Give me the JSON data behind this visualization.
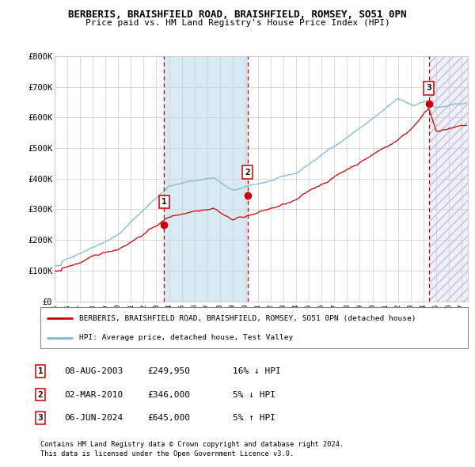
{
  "title_line1": "BERBERIS, BRAISHFIELD ROAD, BRAISHFIELD, ROMSEY, SO51 0PN",
  "title_line2": "Price paid vs. HM Land Registry's House Price Index (HPI)",
  "ylim": [
    0,
    800000
  ],
  "xlim_start": 1995.0,
  "xlim_end": 2027.5,
  "yticks": [
    0,
    100000,
    200000,
    300000,
    400000,
    500000,
    600000,
    700000,
    800000
  ],
  "ytick_labels": [
    "£0",
    "£100K",
    "£200K",
    "£300K",
    "£400K",
    "£500K",
    "£600K",
    "£700K",
    "£800K"
  ],
  "xtick_years": [
    1995,
    1996,
    1997,
    1998,
    1999,
    2000,
    2001,
    2002,
    2003,
    2004,
    2005,
    2006,
    2007,
    2008,
    2009,
    2010,
    2011,
    2012,
    2013,
    2014,
    2015,
    2016,
    2017,
    2018,
    2019,
    2020,
    2021,
    2022,
    2023,
    2024,
    2025,
    2026,
    2027
  ],
  "hpi_color": "#7bb8d8",
  "price_color": "#cc0000",
  "sale_marker_color": "#cc0000",
  "vline_color": "#cc0000",
  "shade_color": "#daeaf5",
  "grid_color": "#cccccc",
  "bg_color": "#ffffff",
  "sale1_x": 2003.6,
  "sale1_y": 249950,
  "sale1_label": "1",
  "sale2_x": 2010.17,
  "sale2_y": 346000,
  "sale2_label": "2",
  "sale3_x": 2024.43,
  "sale3_y": 645000,
  "sale3_label": "3",
  "shade_x1": 2003.6,
  "shade_x2": 2010.17,
  "hatch_x1": 2024.43,
  "hatch_x2": 2027.5,
  "legend_line1": "BERBERIS, BRAISHFIELD ROAD, BRAISHFIELD, ROMSEY, SO51 0PN (detached house)",
  "legend_line2": "HPI: Average price, detached house, Test Valley",
  "table_data": [
    {
      "num": "1",
      "date": "08-AUG-2003",
      "price": "£249,950",
      "hpi": "16% ↓ HPI"
    },
    {
      "num": "2",
      "date": "02-MAR-2010",
      "price": "£346,000",
      "hpi": "5% ↓ HPI"
    },
    {
      "num": "3",
      "date": "06-JUN-2024",
      "price": "£645,000",
      "hpi": "5% ↑ HPI"
    }
  ],
  "footer_line1": "Contains HM Land Registry data © Crown copyright and database right 2024.",
  "footer_line2": "This data is licensed under the Open Government Licence v3.0."
}
